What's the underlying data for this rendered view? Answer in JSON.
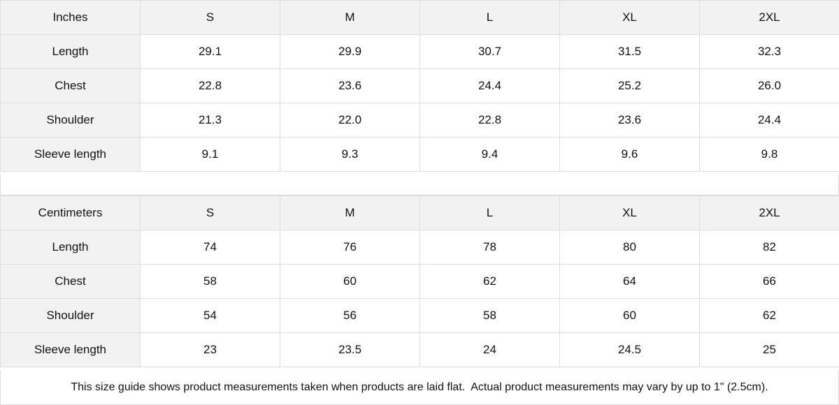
{
  "tables": [
    {
      "unit": "Inches",
      "sizes": [
        "S",
        "M",
        "L",
        "XL",
        "2XL"
      ],
      "rows": [
        {
          "label": "Length",
          "values": [
            "29.1",
            "29.9",
            "30.7",
            "31.5",
            "32.3"
          ]
        },
        {
          "label": "Chest",
          "values": [
            "22.8",
            "23.6",
            "24.4",
            "25.2",
            "26.0"
          ]
        },
        {
          "label": "Shoulder",
          "values": [
            "21.3",
            "22.0",
            "22.8",
            "23.6",
            "24.4"
          ]
        },
        {
          "label": "Sleeve length",
          "values": [
            "9.1",
            "9.3",
            "9.4",
            "9.6",
            "9.8"
          ]
        }
      ]
    },
    {
      "unit": "Centimeters",
      "sizes": [
        "S",
        "M",
        "L",
        "XL",
        "2XL"
      ],
      "rows": [
        {
          "label": "Length",
          "values": [
            "74",
            "76",
            "78",
            "80",
            "82"
          ]
        },
        {
          "label": "Chest",
          "values": [
            "58",
            "60",
            "62",
            "64",
            "66"
          ]
        },
        {
          "label": "Shoulder",
          "values": [
            "54",
            "56",
            "58",
            "60",
            "62"
          ]
        },
        {
          "label": "Sleeve length",
          "values": [
            "23",
            "23.5",
            "24",
            "24.5",
            "25"
          ]
        }
      ]
    }
  ],
  "note": "This size guide shows product measurements taken when products are laid flat.  Actual product measurements may vary by up to 1\" (2.5cm)."
}
